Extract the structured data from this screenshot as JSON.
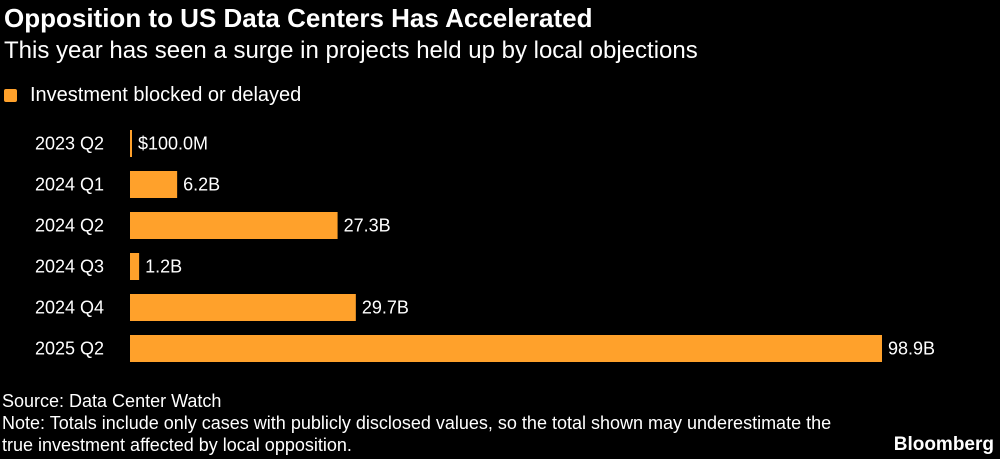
{
  "header": {
    "title": "Opposition to US Data Centers Has Accelerated",
    "subtitle": "This year has seen a surge in projects held up by local objections"
  },
  "legend": {
    "label": "Investment blocked or delayed",
    "color": "#ffa12b"
  },
  "chart_data": {
    "type": "bar",
    "orientation": "horizontal",
    "title": "Opposition to US Data Centers Has Accelerated",
    "subtitle": "This year has seen a surge in projects held up by local objections",
    "xlabel": "",
    "ylabel": "",
    "unit": "USD billions",
    "xlim": [
      0,
      98.9
    ],
    "grid": false,
    "legend_position": "top-left",
    "categories": [
      "2023 Q2",
      "2024 Q1",
      "2024 Q2",
      "2024 Q3",
      "2024 Q4",
      "2025 Q2"
    ],
    "series": [
      {
        "name": "Investment blocked or delayed",
        "color": "#ffa12b",
        "values": [
          0.1,
          6.2,
          27.3,
          1.2,
          29.7,
          98.9
        ],
        "data_labels": [
          "$100.0M",
          "6.2B",
          "27.3B",
          "1.2B",
          "29.7B",
          "98.9B"
        ]
      }
    ]
  },
  "footer": {
    "source": "Source: Data Center Watch",
    "note": "Note: Totals include only cases with publicly disclosed values, so the total shown may underestimate the true investment affected by local opposition.",
    "logo": "Bloomberg"
  }
}
